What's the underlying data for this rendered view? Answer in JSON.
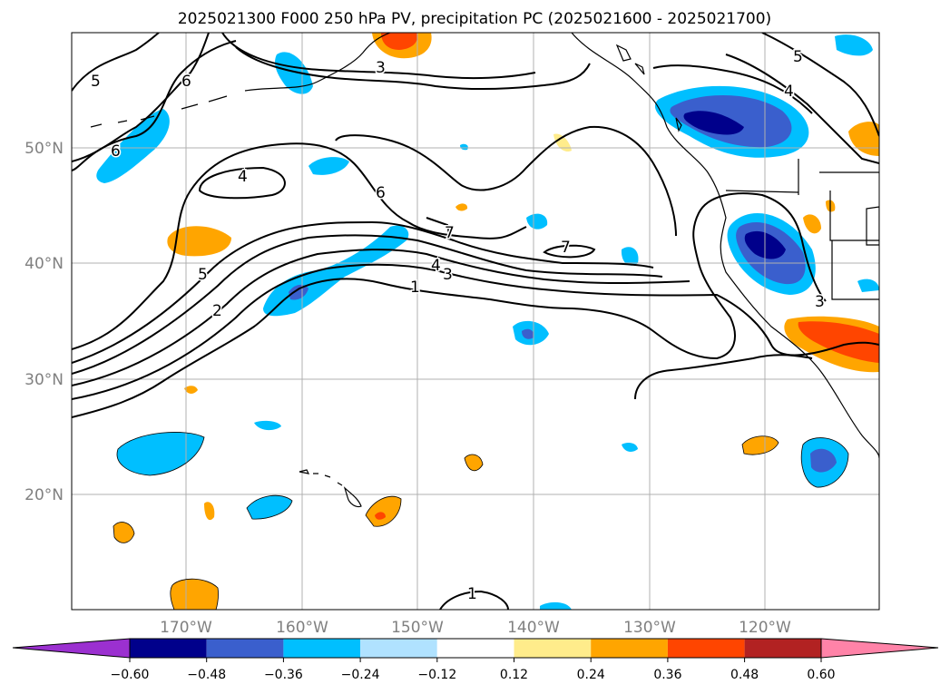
{
  "title": "2025021300 F000 250 hPa PV, precipitation PC (2025021600 - 2025021700)",
  "lon_labels": [
    "170°W",
    "160°W",
    "150°W",
    "140°W",
    "130°W",
    "120°W"
  ],
  "lat_labels": [
    "50°N",
    "40°N",
    "30°N",
    "20°N"
  ],
  "contour_labels": [
    "5",
    "6",
    "6",
    "4",
    "6",
    "7",
    "7",
    "4",
    "3",
    "1",
    "5",
    "2",
    "5",
    "4",
    "3",
    "1",
    "3"
  ],
  "colorbar": {
    "ticks": [
      "−0.60",
      "−0.48",
      "−0.36",
      "−0.24",
      "−0.12",
      "0.12",
      "0.24",
      "0.36",
      "0.48",
      "0.60"
    ],
    "colors": [
      "#9b30d0",
      "#00008b",
      "#3a5fcd",
      "#00bfff",
      "#b0e2ff",
      "#ffffff",
      "#ffec8b",
      "#ffa500",
      "#ff4500",
      "#b22222",
      "#ff83a8"
    ]
  },
  "colors": {
    "very_neg": "#00008b",
    "neg_strong": "#3a5fcd",
    "neg": "#00bfff",
    "neg_light": "#b0e2ff",
    "pos_light": "#ffec8b",
    "pos": "#ffa500",
    "pos_strong": "#ff4500",
    "grid": "#b0b0b0",
    "axis_label": "#808080"
  }
}
